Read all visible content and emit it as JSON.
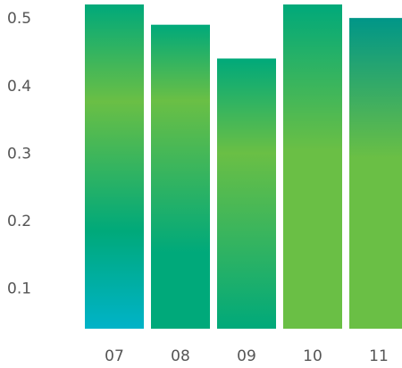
{
  "chart_data": {
    "type": "bar",
    "title": "",
    "xlabel": "",
    "ylabel": "",
    "categories": [
      "07",
      "08",
      "09",
      "10",
      "11"
    ],
    "values": [
      0.52,
      0.49,
      0.44,
      0.52,
      0.5
    ],
    "y_ticks": [
      0.1,
      0.2,
      0.3,
      0.4,
      0.5
    ],
    "y_tick_labels": [
      "0.1",
      "0.2",
      "0.3",
      "0.4",
      "0.5"
    ],
    "ylim": [
      0.04,
      0.52
    ],
    "grid": false,
    "legend": "none",
    "colors": {
      "green": "#6abf45",
      "teal": "#00a97a",
      "cyan": "#00b3c8",
      "deep_teal": "#009688"
    }
  }
}
